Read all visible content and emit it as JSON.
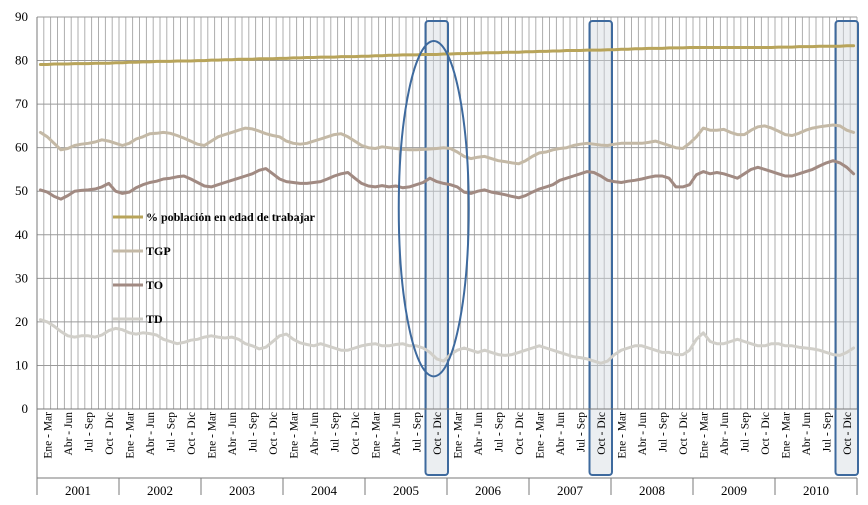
{
  "chart_data": {
    "type": "line",
    "ylim": [
      0,
      90
    ],
    "yticks": [
      0,
      10,
      20,
      30,
      40,
      50,
      60,
      70,
      80,
      90
    ],
    "grid": true,
    "legend_position": "center-left",
    "years": [
      "2001",
      "2002",
      "2003",
      "2004",
      "2005",
      "2006",
      "2007",
      "2008",
      "2009",
      "2010"
    ],
    "period_labels": [
      "Ene - Mar",
      "Abr - Jun",
      "Jul - Sep",
      "Oct - Dic"
    ],
    "months_per_year": 12,
    "highlighted_periods": [
      {
        "year": "2005",
        "period": "Oct - Dic",
        "shape": "rectangle+ellipse"
      },
      {
        "year": "2007",
        "period": "Oct - Dic",
        "shape": "rectangle"
      },
      {
        "year": "2010",
        "period": "Oct - Dic",
        "shape": "rectangle"
      }
    ],
    "series": [
      {
        "name": "% población en edad de trabajar",
        "color": "#b8a45a",
        "values": [
          79.1,
          79.1,
          79.2,
          79.2,
          79.2,
          79.3,
          79.3,
          79.3,
          79.4,
          79.4,
          79.4,
          79.5,
          79.5,
          79.6,
          79.6,
          79.7,
          79.7,
          79.8,
          79.8,
          79.8,
          79.9,
          79.9,
          79.9,
          80.0,
          80.0,
          80.1,
          80.1,
          80.2,
          80.2,
          80.3,
          80.3,
          80.3,
          80.4,
          80.4,
          80.4,
          80.5,
          80.5,
          80.6,
          80.6,
          80.7,
          80.7,
          80.8,
          80.8,
          80.8,
          80.9,
          80.9,
          80.9,
          81.0,
          81.0,
          81.1,
          81.1,
          81.2,
          81.2,
          81.3,
          81.3,
          81.3,
          81.4,
          81.4,
          81.4,
          81.5,
          81.5,
          81.6,
          81.6,
          81.7,
          81.7,
          81.8,
          81.8,
          81.8,
          81.9,
          81.9,
          81.9,
          82.0,
          82.0,
          82.1,
          82.1,
          82.2,
          82.2,
          82.3,
          82.3,
          82.3,
          82.4,
          82.4,
          82.4,
          82.5,
          82.5,
          82.6,
          82.6,
          82.7,
          82.7,
          82.8,
          82.8,
          82.8,
          82.9,
          82.9,
          82.9,
          83.0,
          83.0,
          83.0,
          83.0,
          83.0,
          83.0,
          83.0,
          83.0,
          83.0,
          83.0,
          83.0,
          83.0,
          83.0,
          83.1,
          83.1,
          83.1,
          83.2,
          83.2,
          83.2,
          83.3,
          83.3,
          83.3,
          83.3,
          83.4,
          83.4
        ]
      },
      {
        "name": "TGP",
        "color": "#c4b9a6",
        "values": [
          63.5,
          62.5,
          61.0,
          59.5,
          59.8,
          60.5,
          60.8,
          61.0,
          61.3,
          61.8,
          61.5,
          61.0,
          60.5,
          61.0,
          62.0,
          62.5,
          63.2,
          63.3,
          63.5,
          63.3,
          62.8,
          62.2,
          61.5,
          60.8,
          60.5,
          61.5,
          62.5,
          63.0,
          63.5,
          64.0,
          64.5,
          64.3,
          63.8,
          63.2,
          62.8,
          62.5,
          61.5,
          61.0,
          60.8,
          61.0,
          61.5,
          62.0,
          62.5,
          63.0,
          63.2,
          62.5,
          61.5,
          60.5,
          60.0,
          59.8,
          60.2,
          60.0,
          59.8,
          59.6,
          59.5,
          59.5,
          59.6,
          59.7,
          59.8,
          60.0,
          59.8,
          59.0,
          58.0,
          57.5,
          57.8,
          58.0,
          57.5,
          57.0,
          56.8,
          56.5,
          56.3,
          57.0,
          58.0,
          58.8,
          59.0,
          59.5,
          59.8,
          60.0,
          60.5,
          60.8,
          61.0,
          60.8,
          60.6,
          60.5,
          60.8,
          61.0,
          61.0,
          61.0,
          61.0,
          61.2,
          61.5,
          61.0,
          60.5,
          60.0,
          59.8,
          61.0,
          62.5,
          64.5,
          64.0,
          64.0,
          64.2,
          63.5,
          63.0,
          63.0,
          64.0,
          64.8,
          65.0,
          64.5,
          63.8,
          63.0,
          62.8,
          63.3,
          64.0,
          64.5,
          64.8,
          65.0,
          65.2,
          65.0,
          64.0,
          63.5
        ]
      },
      {
        "name": "TO",
        "color": "#a18a82",
        "values": [
          50.3,
          49.8,
          48.8,
          48.2,
          49.0,
          50.0,
          50.2,
          50.3,
          50.5,
          51.0,
          51.8,
          50.0,
          49.5,
          49.8,
          50.8,
          51.5,
          52.0,
          52.3,
          52.8,
          53.0,
          53.3,
          53.5,
          52.8,
          52.0,
          51.2,
          51.0,
          51.5,
          52.0,
          52.5,
          53.0,
          53.5,
          54.0,
          54.8,
          55.2,
          54.0,
          52.8,
          52.2,
          52.0,
          51.8,
          51.8,
          52.0,
          52.2,
          52.8,
          53.5,
          54.0,
          54.3,
          53.0,
          51.8,
          51.2,
          51.0,
          51.3,
          51.0,
          51.2,
          50.8,
          51.0,
          51.5,
          52.0,
          53.0,
          52.2,
          51.8,
          51.5,
          51.0,
          49.8,
          49.5,
          50.0,
          50.3,
          49.8,
          49.5,
          49.2,
          48.8,
          48.5,
          49.0,
          49.8,
          50.5,
          51.0,
          51.5,
          52.5,
          53.0,
          53.5,
          54.0,
          54.5,
          54.3,
          53.5,
          52.5,
          52.2,
          52.0,
          52.3,
          52.5,
          52.8,
          53.2,
          53.5,
          53.5,
          53.0,
          51.0,
          51.0,
          51.5,
          53.8,
          54.5,
          54.0,
          54.3,
          54.0,
          53.5,
          53.0,
          54.0,
          55.0,
          55.5,
          55.0,
          54.5,
          54.0,
          53.5,
          53.5,
          54.0,
          54.5,
          55.0,
          55.8,
          56.5,
          57.0,
          56.5,
          55.5,
          54.0
        ]
      },
      {
        "name": "TD",
        "color": "#d1cfc9",
        "values": [
          20.5,
          20.0,
          19.0,
          17.8,
          16.8,
          16.5,
          16.8,
          16.8,
          16.5,
          17.0,
          18.0,
          18.5,
          18.2,
          17.5,
          17.2,
          17.5,
          17.3,
          17.0,
          16.0,
          15.5,
          15.0,
          15.3,
          15.8,
          16.0,
          16.5,
          16.8,
          16.5,
          16.3,
          16.5,
          16.0,
          15.0,
          14.5,
          13.8,
          14.2,
          15.5,
          16.8,
          17.2,
          16.0,
          15.2,
          14.8,
          14.5,
          15.0,
          14.5,
          14.0,
          13.5,
          13.5,
          14.0,
          14.5,
          14.8,
          15.0,
          14.5,
          14.5,
          14.8,
          15.0,
          14.5,
          14.5,
          14.0,
          13.0,
          11.5,
          11.0,
          12.5,
          13.5,
          14.0,
          13.5,
          13.0,
          13.5,
          13.0,
          12.5,
          12.3,
          12.5,
          13.0,
          13.5,
          14.0,
          14.5,
          14.0,
          13.5,
          13.0,
          12.5,
          12.0,
          11.8,
          11.5,
          11.0,
          10.5,
          11.0,
          12.5,
          13.5,
          14.0,
          14.5,
          14.5,
          14.0,
          13.5,
          13.0,
          13.0,
          12.5,
          12.5,
          13.5,
          16.0,
          17.5,
          15.5,
          15.0,
          15.0,
          15.5,
          16.0,
          15.5,
          15.0,
          14.5,
          14.5,
          15.0,
          15.0,
          14.5,
          14.5,
          14.2,
          14.0,
          13.8,
          13.5,
          13.0,
          12.5,
          12.3,
          13.0,
          14.0
        ]
      }
    ]
  }
}
